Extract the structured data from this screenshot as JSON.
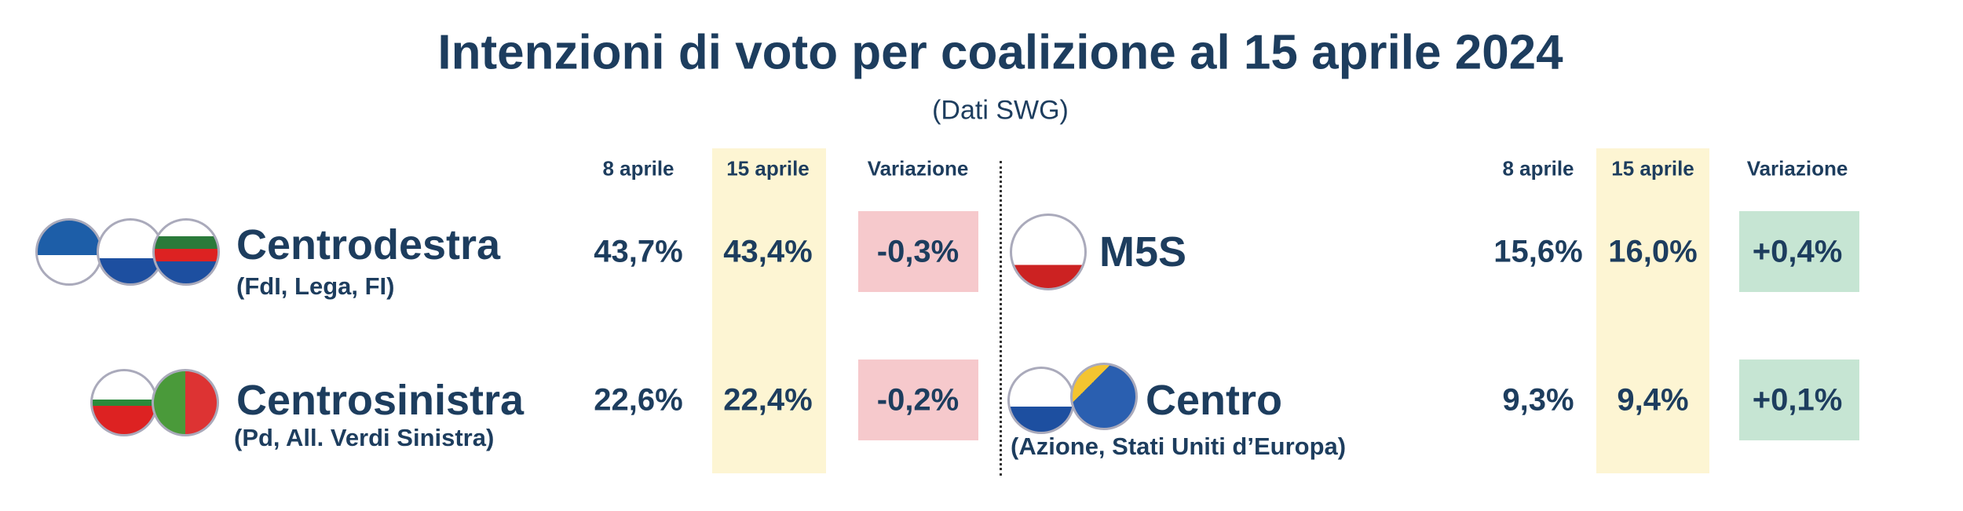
{
  "header": {
    "title": "Intenzioni di voto per coalizione al 15 aprile 2024",
    "subtitle": "(Dati SWG)"
  },
  "left": {
    "columns": [
      "8 aprile",
      "15 aprile",
      "Variazione"
    ],
    "rows": [
      {
        "name": "Centrodestra",
        "parties": "(FdI, Lega, FI)",
        "values": [
          "43,7%",
          "43,4%",
          "-0,3%"
        ]
      },
      {
        "name": "Centrosinistra",
        "parties": "(Pd, All. Verdi Sinistra)",
        "values": [
          "22,6%",
          "22,4%",
          "-0,2%"
        ]
      }
    ]
  },
  "right": {
    "columns": [
      "8 aprile",
      "15 aprile",
      "Variazione"
    ],
    "rows": [
      {
        "name": "M5S",
        "values": [
          "15,6%",
          "16,0%",
          "+0,4%"
        ]
      },
      {
        "name": "Centro",
        "parties": "(Azione, Stati Uniti d’Europa)",
        "values": [
          "9,3%",
          "9,4%",
          "+0,1%"
        ]
      }
    ]
  }
}
